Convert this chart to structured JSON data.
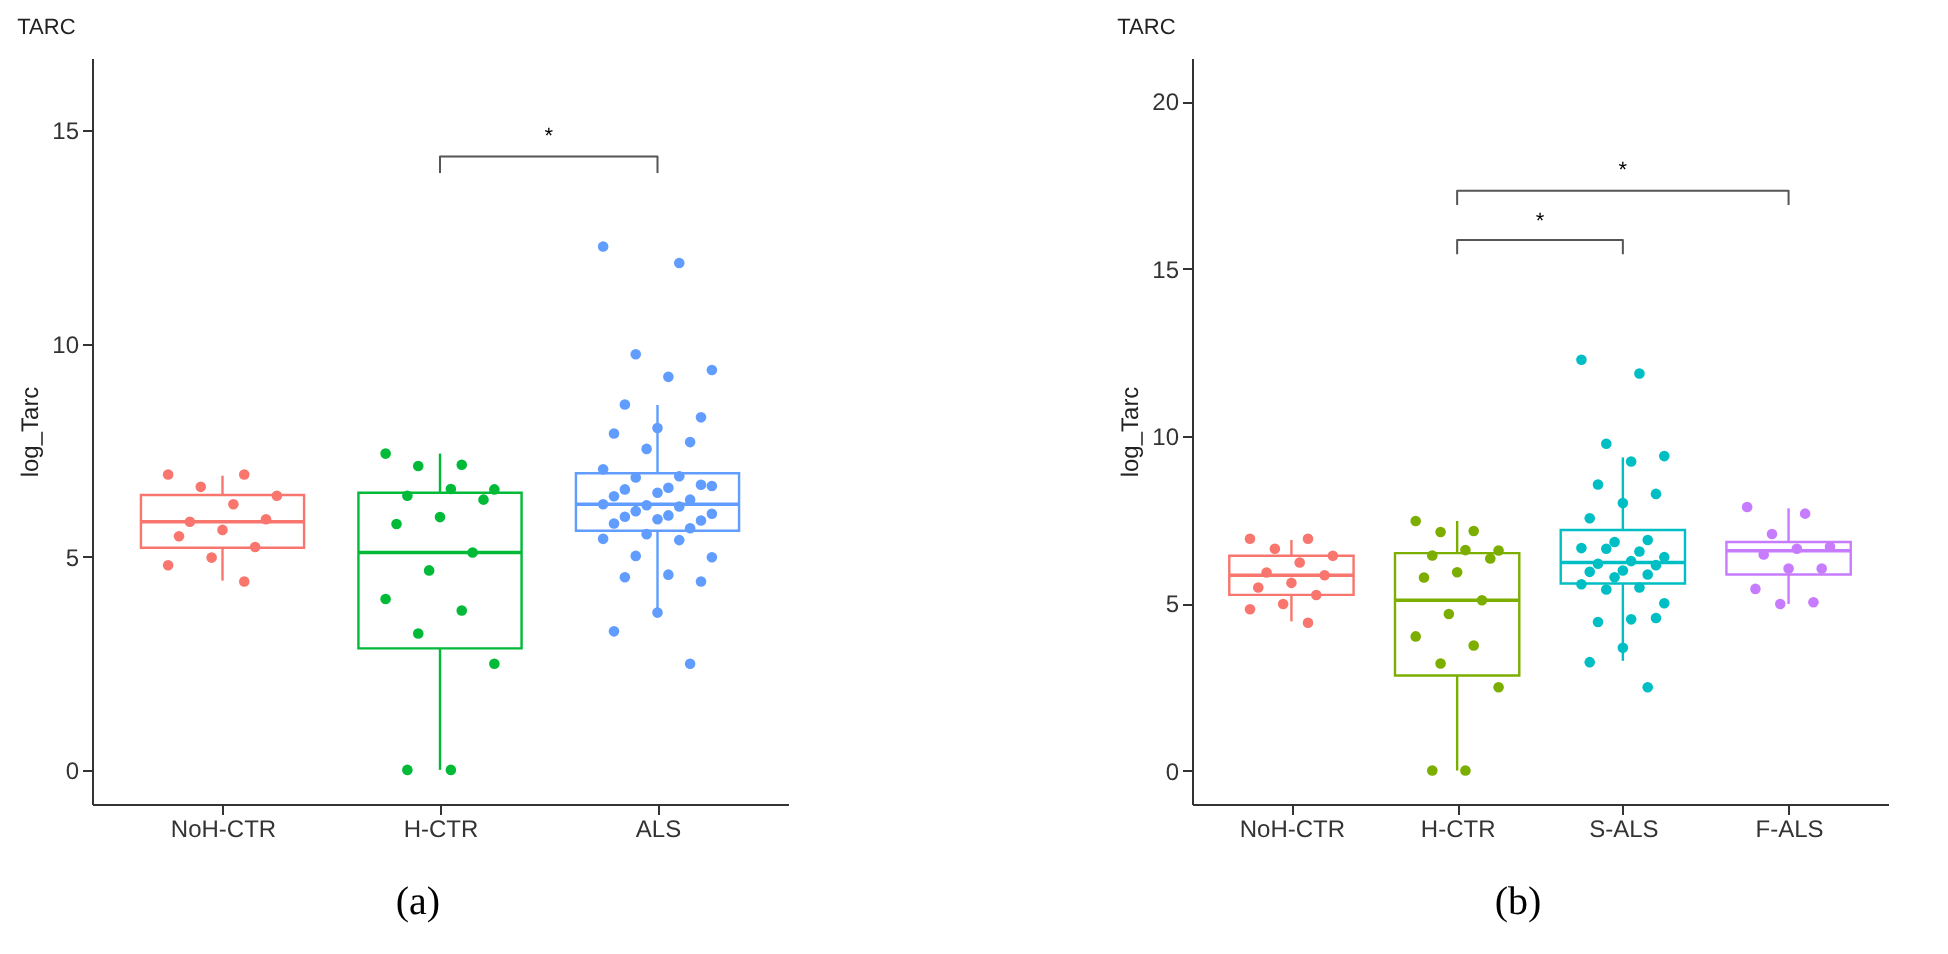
{
  "chart_data": [
    {
      "type": "box",
      "title": "TARC",
      "ylabel": "log_Tarc",
      "categories": [
        "NoH-CTR",
        "H-CTR",
        "ALS"
      ],
      "colors": [
        "#f8766d",
        "#00ba38",
        "#619cff"
      ],
      "boxes": [
        {
          "low": 4.44,
          "q1": 5.21,
          "median": 5.82,
          "q3": 6.45,
          "high": 6.9
        },
        {
          "low": 0,
          "q1": 2.85,
          "median": 5.1,
          "q3": 6.5,
          "high": 7.42
        },
        {
          "low": 3.69,
          "q1": 5.61,
          "median": 6.23,
          "q3": 6.96,
          "high": 8.56
        }
      ],
      "series": [
        {
          "type": "scatter",
          "color": "#f8766d",
          "x": [
            "NoH-CTR",
            "NoH-CTR",
            "NoH-CTR",
            "NoH-CTR",
            "NoH-CTR",
            "NoH-CTR",
            "NoH-CTR",
            "NoH-CTR",
            "NoH-CTR",
            "NoH-CTR",
            "NoH-CTR",
            "NoH-CTR",
            "NoH-CTR"
          ],
          "values": [
            6.93,
            6.93,
            6.64,
            6.43,
            6.23,
            5.82,
            5.88,
            5.63,
            5.48,
            5.23,
            4.98,
            4.8,
            4.42
          ]
        },
        {
          "type": "scatter",
          "color": "#00ba38",
          "x": [
            "H-CTR",
            "H-CTR",
            "H-CTR",
            "H-CTR",
            "H-CTR",
            "H-CTR",
            "H-CTR",
            "H-CTR",
            "H-CTR",
            "H-CTR",
            "H-CTR",
            "H-CTR",
            "H-CTR",
            "H-CTR",
            "H-CTR",
            "H-CTR",
            "H-CTR"
          ],
          "values": [
            7.42,
            7.16,
            7.13,
            6.58,
            6.59,
            6.43,
            6.34,
            5.93,
            5.77,
            5.1,
            4.68,
            4.01,
            3.74,
            3.2,
            2.49,
            0,
            0
          ]
        },
        {
          "type": "scatter",
          "color": "#619cff",
          "x": [
            "ALS",
            "ALS",
            "ALS",
            "ALS",
            "ALS",
            "ALS",
            "ALS",
            "ALS",
            "ALS",
            "ALS",
            "ALS",
            "ALS",
            "ALS",
            "ALS",
            "ALS",
            "ALS",
            "ALS",
            "ALS",
            "ALS",
            "ALS",
            "ALS",
            "ALS",
            "ALS",
            "ALS",
            "ALS",
            "ALS",
            "ALS",
            "ALS",
            "ALS",
            "ALS",
            "ALS",
            "ALS",
            "ALS",
            "ALS",
            "ALS",
            "ALS",
            "ALS",
            "ALS",
            "ALS",
            "ALS",
            "ALS",
            "ALS",
            "ALS"
          ],
          "values": [
            12.28,
            11.89,
            9.75,
            9.38,
            9.22,
            8.57,
            8.27,
            8.02,
            7.89,
            7.69,
            7.53,
            7.05,
            6.89,
            6.86,
            6.66,
            6.62,
            6.58,
            6.69,
            6.5,
            6.42,
            6.34,
            6.21,
            6.23,
            6.18,
            6.07,
            6.01,
            5.97,
            5.94,
            5.85,
            5.88,
            5.78,
            5.67,
            5.53,
            5.42,
            5.39,
            5.02,
            4.99,
            4.58,
            4.52,
            4.42,
            3.69,
            3.25,
            2.49
          ]
        }
      ],
      "ylim": [
        -0.8,
        16.7
      ],
      "yticks": [
        0,
        5,
        10,
        15
      ],
      "annotations": [
        "*",
        "(a)"
      ]
    },
    {
      "type": "box",
      "title": "TARC",
      "ylabel": "log_Tarc",
      "categories": [
        "NoH-CTR",
        "H-CTR",
        "S-ALS",
        "F-ALS"
      ],
      "colors": [
        "#f8766d",
        "#7cae00",
        "#00bfc4",
        "#c77cff"
      ],
      "boxes": [
        {
          "low": 4.46,
          "q1": 5.25,
          "median": 5.84,
          "q3": 6.42,
          "high": 6.89
        },
        {
          "low": 0,
          "q1": 2.84,
          "median": 5.09,
          "q3": 6.5,
          "high": 7.46
        },
        {
          "low": 3.28,
          "q1": 5.59,
          "median": 6.22,
          "q3": 7.19,
          "high": 9.36
        },
        {
          "low": 4.98,
          "q1": 5.86,
          "median": 6.57,
          "q3": 6.83,
          "high": 7.84
        }
      ],
      "series": [
        {
          "type": "scatter",
          "color": "#f8766d",
          "x": [
            "NoH-CTR",
            "NoH-CTR",
            "NoH-CTR",
            "NoH-CTR",
            "NoH-CTR",
            "NoH-CTR",
            "NoH-CTR",
            "NoH-CTR",
            "NoH-CTR",
            "NoH-CTR",
            "NoH-CTR",
            "NoH-CTR",
            "NoH-CTR"
          ],
          "values": [
            6.93,
            6.93,
            6.63,
            6.42,
            6.22,
            5.92,
            5.84,
            5.61,
            5.47,
            5.25,
            4.98,
            4.82,
            4.42
          ]
        },
        {
          "type": "scatter",
          "color": "#7cae00",
          "x": [
            "H-CTR",
            "H-CTR",
            "H-CTR",
            "H-CTR",
            "H-CTR",
            "H-CTR",
            "H-CTR",
            "H-CTR",
            "H-CTR",
            "H-CTR",
            "H-CTR",
            "H-CTR",
            "H-CTR",
            "H-CTR",
            "H-CTR",
            "H-CTR",
            "H-CTR"
          ],
          "values": [
            7.46,
            7.16,
            7.13,
            6.58,
            6.59,
            6.43,
            6.34,
            5.93,
            5.77,
            5.09,
            4.68,
            4.01,
            3.74,
            3.2,
            2.49,
            0,
            0
          ]
        },
        {
          "type": "scatter",
          "color": "#00bfc4",
          "x": [
            "S-ALS",
            "S-ALS",
            "S-ALS",
            "S-ALS",
            "S-ALS",
            "S-ALS",
            "S-ALS",
            "S-ALS",
            "S-ALS",
            "S-ALS",
            "S-ALS",
            "S-ALS",
            "S-ALS",
            "S-ALS",
            "S-ALS",
            "S-ALS",
            "S-ALS",
            "S-ALS",
            "S-ALS",
            "S-ALS",
            "S-ALS",
            "S-ALS",
            "S-ALS",
            "S-ALS",
            "S-ALS",
            "S-ALS",
            "S-ALS",
            "S-ALS",
            "S-ALS",
            "S-ALS",
            "S-ALS",
            "S-ALS"
          ],
          "values": [
            12.28,
            11.87,
            9.77,
            9.4,
            9.24,
            8.55,
            8.27,
            8.0,
            7.54,
            6.89,
            6.83,
            6.65,
            6.55,
            6.63,
            6.38,
            6.26,
            6.18,
            6.14,
            5.98,
            5.94,
            5.86,
            5.78,
            5.57,
            5.47,
            5.41,
            5.0,
            4.52,
            4.44,
            4.56,
            3.67,
            3.24,
            2.49
          ]
        },
        {
          "type": "scatter",
          "color": "#c77cff",
          "x": [
            "F-ALS",
            "F-ALS",
            "F-ALS",
            "F-ALS",
            "F-ALS",
            "F-ALS",
            "F-ALS",
            "F-ALS",
            "F-ALS",
            "F-ALS",
            "F-ALS"
          ],
          "values": [
            7.88,
            7.68,
            7.07,
            6.69,
            6.63,
            6.46,
            6.04,
            6.04,
            5.43,
            5.03,
            4.98
          ]
        }
      ],
      "ylim": [
        -1,
        21.3
      ],
      "yticks": [
        0,
        5,
        10,
        15,
        20
      ],
      "annotations": [
        "*",
        "*",
        "(b)"
      ]
    }
  ]
}
